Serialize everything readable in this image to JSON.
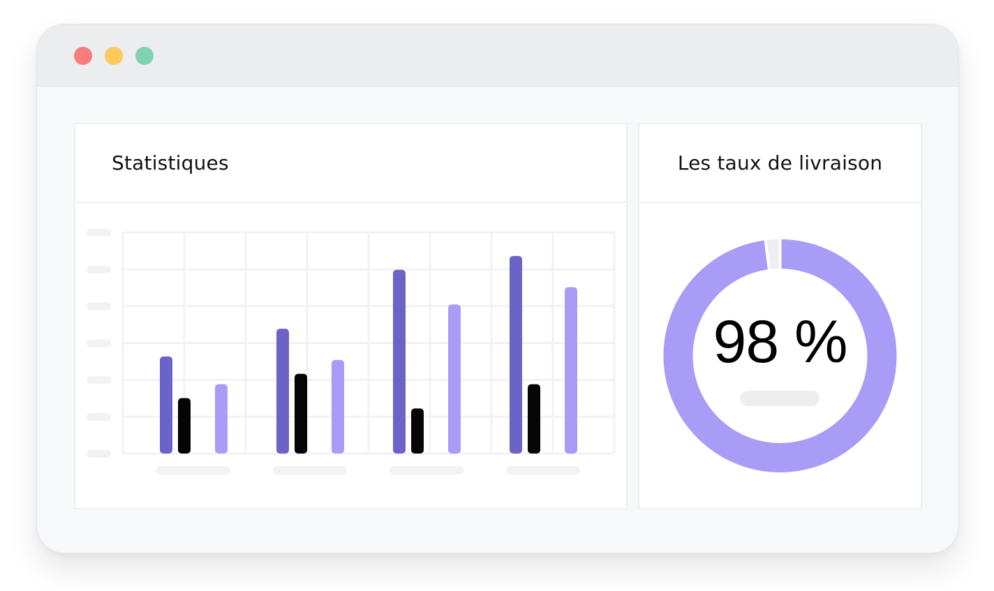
{
  "window": {
    "buttons": [
      {
        "name": "close-button",
        "color": "#f77c7c"
      },
      {
        "name": "minimize-button",
        "color": "#fcc95a"
      },
      {
        "name": "maximize-button",
        "color": "#7fd3b4"
      }
    ]
  },
  "stats": {
    "title": "Statistiques"
  },
  "delivery": {
    "title": "Les taux de livraison",
    "percent_label": "98 %",
    "value": 0.98
  },
  "colors": {
    "series_dark_purple": "#6b63c7",
    "series_black": "#050505",
    "series_light_purple": "#a89cf7",
    "grid": "#f1f2f4"
  },
  "chart_data": {
    "type": "bar",
    "categories": [
      "",
      "",
      "",
      ""
    ],
    "series": [
      {
        "values": [
          28,
          36,
          53,
          57
        ]
      },
      {
        "values": [
          16,
          23,
          13,
          20
        ]
      },
      {
        "values": [
          20,
          27,
          43,
          48
        ]
      }
    ],
    "ylim": [
      0,
      60
    ],
    "grid": true,
    "legend": "none"
  }
}
